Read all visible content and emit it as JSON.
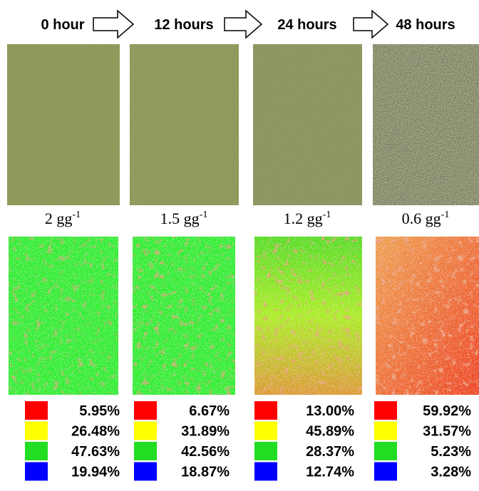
{
  "legend_colors": [
    "#ff0000",
    "#ffff00",
    "#22dd22",
    "#0000ff"
  ],
  "columns": [
    {
      "time": "0 hour",
      "moisture": {
        "value": "2 gg",
        "exponent": "-1"
      },
      "shares": [
        "5.95%",
        "26.48%",
        "47.63%",
        "19.94%"
      ]
    },
    {
      "time": "12 hours",
      "moisture": {
        "value": "1.5 gg",
        "exponent": "-1"
      },
      "shares": [
        "6.67%",
        "31.89%",
        "42.56%",
        "18.87%"
      ]
    },
    {
      "time": "24 hours",
      "moisture": {
        "value": "1.2 gg",
        "exponent": "-1"
      },
      "shares": [
        "13.00%",
        "45.89%",
        "28.37%",
        "12.74%"
      ]
    },
    {
      "time": "48 hours",
      "moisture": {
        "value": "0.6 gg",
        "exponent": "-1"
      },
      "shares": [
        "59.92%",
        "31.57%",
        "5.23%",
        "3.28%"
      ]
    }
  ]
}
